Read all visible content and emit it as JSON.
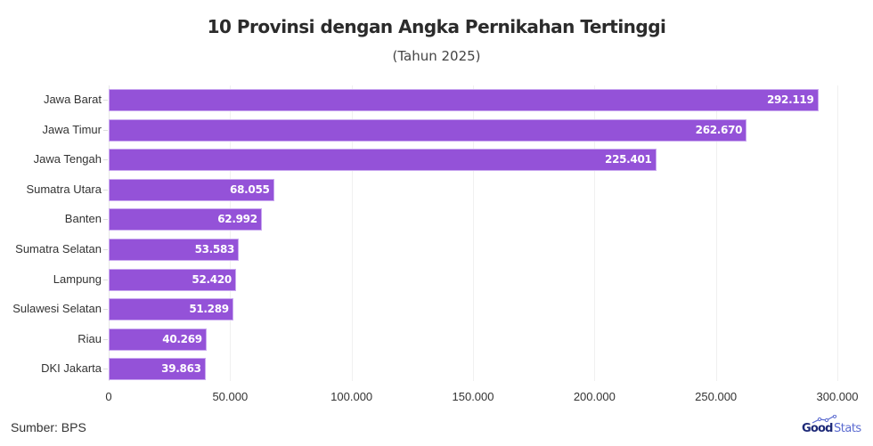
{
  "header": {
    "title": "10 Provinsi dengan Angka Pernikahan Tertinggi",
    "subtitle": "(Tahun 2025)"
  },
  "footer": {
    "source": "Sumber: BPS",
    "logo_good": "Good",
    "logo_stats": "Stats"
  },
  "colors": {
    "bar": "#9452d8",
    "bar_label": "#ffffff"
  },
  "chart_data": {
    "type": "bar",
    "orientation": "horizontal",
    "title": "10 Provinsi dengan Angka Pernikahan Tertinggi",
    "subtitle": "(Tahun 2025)",
    "categories": [
      "Jawa Barat",
      "Jawa Timur",
      "Jawa Tengah",
      "Sumatra Utara",
      "Banten",
      "Sumatra Selatan",
      "Lampung",
      "Sulawesi Selatan",
      "Riau",
      "DKI Jakarta"
    ],
    "values": [
      292119,
      262670,
      225401,
      68055,
      62992,
      53583,
      52420,
      51289,
      40269,
      39863
    ],
    "value_labels": [
      "292.119",
      "262.670",
      "225.401",
      "68.055",
      "62.992",
      "53.583",
      "52.420",
      "51.289",
      "40.269",
      "39.863"
    ],
    "xlabel": "",
    "ylabel": "",
    "xlim": [
      0,
      300000
    ],
    "x_ticks": [
      0,
      50000,
      100000,
      150000,
      200000,
      250000,
      300000
    ],
    "x_tick_labels": [
      "0",
      "50.000",
      "100.000",
      "150.000",
      "200.000",
      "250.000",
      "300.000"
    ],
    "grid": true,
    "legend": "none",
    "source": "Sumber: BPS"
  }
}
